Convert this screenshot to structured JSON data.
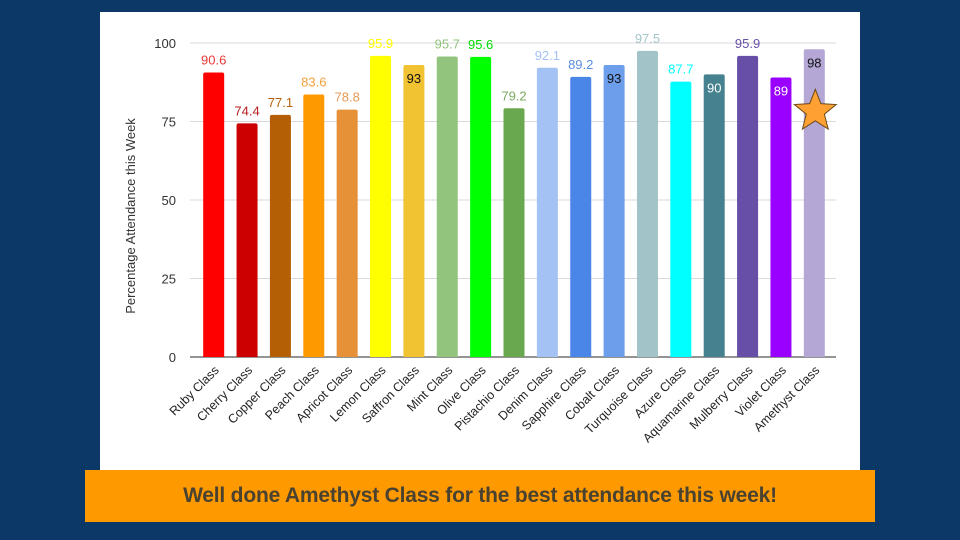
{
  "chart_data": {
    "type": "bar",
    "title": "",
    "xlabel": "",
    "ylabel": "Percentage Attendance this Week",
    "ylim": [
      0,
      100
    ],
    "yticks": [
      0,
      25,
      50,
      75,
      100
    ],
    "grid": true,
    "legend": "none",
    "categories": [
      "Ruby Class",
      "Cherry Class",
      "Copper Class",
      "Peach Class",
      "Apricot Class",
      "Lemon Class",
      "Saffron Class",
      "Mint Class",
      "Olive Class",
      "Pistachio Class",
      "Denim Class",
      "Sapphire Class",
      "Cobalt Class",
      "Turquoise Class",
      "Azure Class",
      "Aquamarine Class",
      "Mulberry Class",
      "Violet Class",
      "Amethyst Class"
    ],
    "values": [
      90.6,
      74.4,
      77.1,
      83.6,
      78.8,
      95.9,
      93,
      95.7,
      95.6,
      79.2,
      92.1,
      89.2,
      93,
      97.5,
      87.7,
      90,
      95.9,
      89,
      98
    ],
    "data_labels": [
      "90.6",
      "74.4",
      "77.1",
      "83.6",
      "78.8",
      "95.9",
      "93",
      "95.7",
      "95.6",
      "79.2",
      "92.1",
      "89.2",
      "93",
      "97.5",
      "87.7",
      "90",
      "95.9",
      "89",
      "98"
    ],
    "bar_colors": [
      "#ff0000",
      "#cc0000",
      "#b45f06",
      "#ff9900",
      "#e69138",
      "#ffff00",
      "#f1c232",
      "#93c47d",
      "#00ff00",
      "#6aa84f",
      "#a4c2f4",
      "#4a86e8",
      "#6d9eeb",
      "#a2c4c9",
      "#00ffff",
      "#45818e",
      "#674ea7",
      "#9900ff",
      "#b4a7d6"
    ],
    "label_colors": [
      "#e53935",
      "#b71c1c",
      "#b45f06",
      "#f6a03b",
      "#e69a58",
      "#ffff00",
      "#111111",
      "#93c47d",
      "#00dd00",
      "#7aa860",
      "#a4c2f4",
      "#5a8de0",
      "#111111",
      "#a2c4c9",
      "#00ffff",
      "#ffffff",
      "#674ea7",
      "#ffffff",
      "#111111"
    ],
    "label_inside": [
      false,
      false,
      false,
      false,
      false,
      false,
      true,
      false,
      false,
      false,
      false,
      false,
      true,
      false,
      false,
      true,
      false,
      true,
      true
    ],
    "highlight": {
      "category": "Amethyst Class",
      "marker": "star-icon",
      "color": "#ffa033"
    }
  },
  "banner": {
    "text": "Well done Amethyst Class for the best attendance this week!",
    "background": "#ff9900"
  }
}
